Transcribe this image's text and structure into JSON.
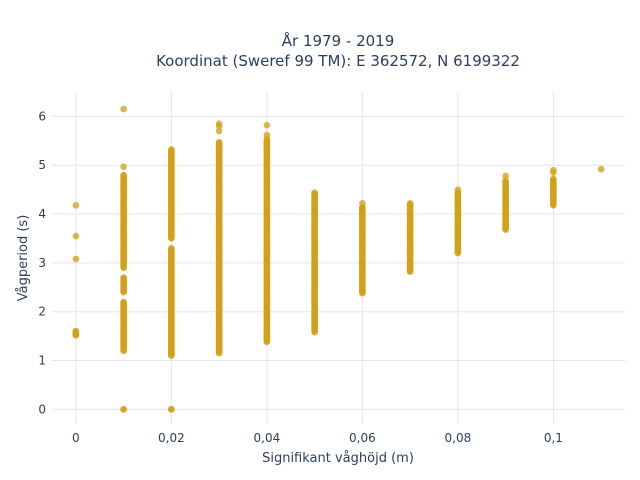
{
  "chart_data": {
    "type": "scatter",
    "title_line1": "År 1979 - 2019",
    "title_line2": "Koordinat (Sweref 99 TM): E 362572, N 6199322",
    "xlabel": "Signifikant våghöjd (m)",
    "ylabel": "Vågperiod (s)",
    "xlim": [
      -0.005,
      0.115
    ],
    "ylim": [
      -0.3,
      6.5
    ],
    "x_ticks": [
      0,
      0.02,
      0.04,
      0.06,
      0.08,
      0.1
    ],
    "x_tick_labels": [
      "0",
      "0,02",
      "0,04",
      "0,06",
      "0,08",
      "0,1"
    ],
    "y_ticks": [
      0,
      1,
      2,
      3,
      4,
      5,
      6
    ],
    "y_tick_labels": [
      "0",
      "1",
      "2",
      "3",
      "4",
      "5",
      "6"
    ],
    "grid": true,
    "marker_color": "#D4A017",
    "columns": [
      {
        "x": 0.0,
        "ranges": [
          [
            1.52,
            1.6
          ]
        ],
        "points": [
          4.18,
          3.55,
          3.08,
          1.6,
          1.56,
          1.52
        ]
      },
      {
        "x": 0.01,
        "ranges": [
          [
            1.2,
            2.2
          ],
          [
            2.4,
            2.7
          ],
          [
            2.9,
            4.8
          ]
        ],
        "points": [
          6.15,
          4.97,
          0.0,
          0.0
        ]
      },
      {
        "x": 0.02,
        "ranges": [
          [
            1.1,
            3.3
          ],
          [
            3.5,
            5.33
          ]
        ],
        "points": [
          0.0,
          0.0
        ]
      },
      {
        "x": 0.03,
        "ranges": [
          [
            1.15,
            5.47
          ]
        ],
        "points": [
          5.85,
          5.8,
          5.7
        ]
      },
      {
        "x": 0.04,
        "ranges": [
          [
            1.38,
            5.55
          ]
        ],
        "points": [
          5.82,
          5.62
        ]
      },
      {
        "x": 0.05,
        "ranges": [
          [
            1.58,
            4.45
          ]
        ],
        "points": []
      },
      {
        "x": 0.06,
        "ranges": [
          [
            2.38,
            4.15
          ]
        ],
        "points": [
          4.22
        ]
      },
      {
        "x": 0.07,
        "ranges": [
          [
            2.82,
            4.22
          ]
        ],
        "points": []
      },
      {
        "x": 0.08,
        "ranges": [
          [
            3.2,
            4.45
          ]
        ],
        "points": [
          4.5
        ]
      },
      {
        "x": 0.09,
        "ranges": [
          [
            3.68,
            4.68
          ]
        ],
        "points": [
          4.78
        ]
      },
      {
        "x": 0.1,
        "ranges": [
          [
            4.18,
            4.72
          ]
        ],
        "points": [
          4.9,
          4.85
        ]
      },
      {
        "x": 0.11,
        "ranges": [],
        "points": [
          4.92
        ]
      }
    ]
  }
}
